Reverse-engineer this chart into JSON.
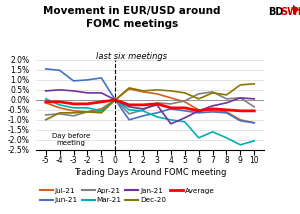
{
  "title": "Movement in EUR/USD around\nFOMC meetings",
  "subtitle": "last six meetings",
  "xlabel": "Trading Days Around FOMC meeting",
  "x": [
    -5,
    -4,
    -3,
    -2,
    -1,
    0,
    1,
    2,
    3,
    4,
    5,
    6,
    7,
    8,
    9,
    10
  ],
  "series": {
    "Jul-21": {
      "color": "#d06020",
      "values": [
        -0.15,
        -0.4,
        -0.55,
        -0.6,
        -0.45,
        0.0,
        0.55,
        0.4,
        0.3,
        0.1,
        -0.1,
        -0.5,
        -0.55,
        -0.6,
        -1.0,
        -1.15
      ]
    },
    "Jun-21": {
      "color": "#4472c4",
      "values": [
        1.55,
        1.48,
        0.95,
        1.0,
        1.1,
        0.0,
        -1.0,
        -0.8,
        -0.65,
        -0.45,
        -0.55,
        -0.65,
        -0.6,
        -0.65,
        -1.05,
        -1.15
      ]
    },
    "Apr-21": {
      "color": "#808080",
      "values": [
        -0.75,
        -0.7,
        -0.8,
        -0.6,
        -0.55,
        0.0,
        -0.7,
        -0.5,
        -0.15,
        -0.2,
        -0.05,
        0.3,
        0.4,
        0.05,
        0.1,
        -0.35
      ]
    },
    "Mar-21": {
      "color": "#00b0b0",
      "values": [
        0.05,
        -0.25,
        -0.4,
        -0.4,
        -0.55,
        0.0,
        -0.5,
        -0.55,
        -0.85,
        -1.0,
        -1.1,
        -1.9,
        -1.6,
        -1.9,
        -2.25,
        -2.05
      ]
    },
    "Jan-21": {
      "color": "#7030a0",
      "values": [
        0.45,
        0.5,
        0.45,
        0.35,
        0.35,
        0.0,
        -0.35,
        -0.45,
        -0.25,
        -1.2,
        -0.9,
        -0.55,
        -0.3,
        -0.15,
        0.1,
        0.05
      ]
    },
    "Dec-20": {
      "color": "#8b7500",
      "values": [
        -1.0,
        -0.65,
        -0.65,
        -0.6,
        -0.65,
        0.0,
        0.6,
        0.45,
        0.5,
        0.45,
        0.35,
        0.05,
        0.35,
        0.25,
        0.75,
        0.8
      ]
    },
    "Average": {
      "color": "#ff0000",
      "values": [
        -0.1,
        -0.1,
        -0.2,
        -0.2,
        -0.1,
        0.0,
        -0.25,
        -0.25,
        -0.2,
        -0.4,
        -0.4,
        -0.55,
        -0.45,
        -0.5,
        -0.55,
        -0.55
      ]
    }
  },
  "ylim": [
    -2.5,
    2.0
  ],
  "yticks": [
    -2.5,
    -2.0,
    -1.5,
    -1.0,
    -0.5,
    0.0,
    0.5,
    1.0,
    1.5,
    2.0
  ],
  "annotation_text": "Day before\nmeeting",
  "dashed_line_x": 0,
  "bg_color": "#ffffff",
  "legend_order": [
    "Jul-21",
    "Jun-21",
    "Apr-21",
    "Mar-21",
    "Jan-21",
    "Dec-20",
    "Average"
  ],
  "logo_bd_color": "#000000",
  "logo_swiss_color": "#cc0000"
}
